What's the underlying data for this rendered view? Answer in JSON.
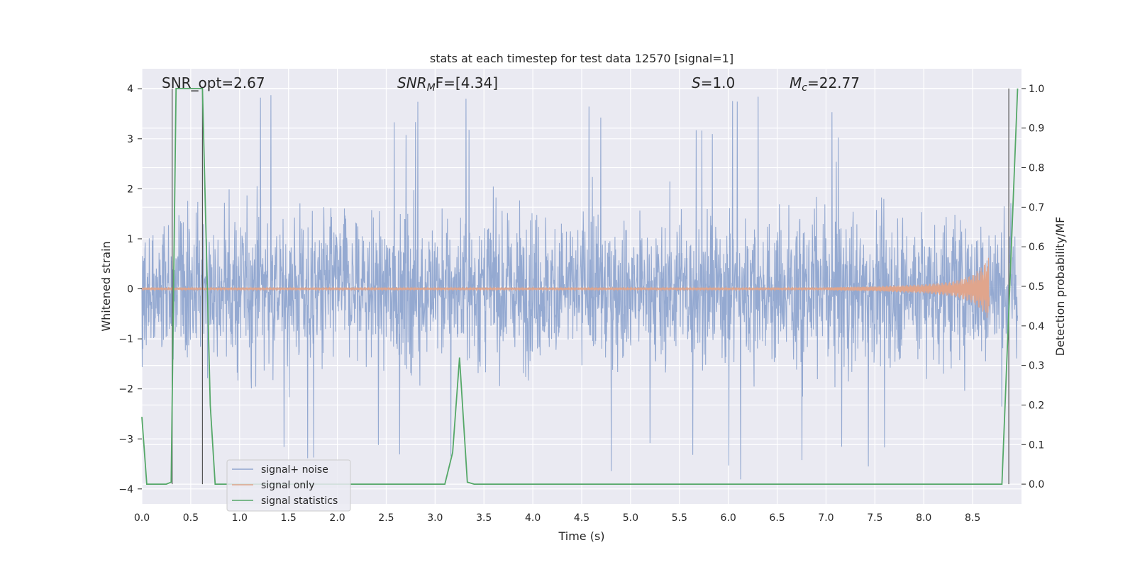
{
  "chart_data": {
    "type": "line",
    "title": "stats at each timestep for test data 12570 [signal=1]",
    "xlabel": "Time (s)",
    "ylabel_left": "Whitened strain",
    "ylabel_right": "Detection probability/MF",
    "xlim": [
      0,
      9.0
    ],
    "ylim_left": [
      -4.3,
      4.4
    ],
    "ylim_right": [
      -0.05,
      1.05
    ],
    "xticks": [
      "0.0",
      "0.5",
      "1.0",
      "1.5",
      "2.0",
      "2.5",
      "3.0",
      "3.5",
      "4.0",
      "4.5",
      "5.0",
      "5.5",
      "6.0",
      "6.5",
      "7.0",
      "7.5",
      "8.0",
      "8.5"
    ],
    "yticks_left": [
      "4",
      "3",
      "2",
      "1",
      "0",
      "−1",
      "−2",
      "−3",
      "−4"
    ],
    "yticks_right": [
      "1.0",
      "0.9",
      "0.8",
      "0.7",
      "0.6",
      "0.5",
      "0.4",
      "0.3",
      "0.2",
      "0.1",
      "0.0"
    ],
    "grid": true,
    "legend_position": "lower-left",
    "annotations": {
      "snr_opt": "SNR_opt=2.67",
      "snr_mf_name": "SNR",
      "snr_mf_sub": "M",
      "snr_mf_rest": "F=[4.34]",
      "s_name": "S",
      "s_rest": "=1.0",
      "mc_name": "M",
      "mc_sub": "c",
      "mc_rest": "=22.77"
    },
    "series": [
      {
        "name": "signal+ noise",
        "color": "#8fa5cf",
        "note": "dense whitened noise, roughly within [-2.5, 2.6] with spikes to ±3.9"
      },
      {
        "name": "signal only",
        "color": "#e0a58c",
        "envelope": {
          "x": [
            7.0,
            7.5,
            8.0,
            8.3,
            8.5,
            8.6,
            8.67
          ],
          "amplitude": [
            0.03,
            0.05,
            0.09,
            0.15,
            0.28,
            0.45,
            0.65
          ]
        }
      },
      {
        "name": "signal statistics",
        "color": "#55a868",
        "axis": "right",
        "x": [
          0.0,
          0.05,
          0.15,
          0.25,
          0.3,
          0.35,
          0.38,
          0.55,
          0.62,
          0.7,
          0.75,
          0.8,
          3.1,
          3.18,
          3.25,
          3.33,
          3.4,
          8.5,
          8.8,
          8.88,
          8.96
        ],
        "y": [
          0.17,
          0.0,
          0.0,
          0.0,
          0.005,
          1.0,
          1.0,
          1.0,
          1.0,
          0.2,
          0.0,
          0.0,
          0.0,
          0.08,
          0.32,
          0.005,
          0.0,
          0.0,
          0.0,
          0.5,
          1.0
        ]
      }
    ],
    "vertical_markers_x": [
      0.31,
      0.62,
      8.87
    ]
  }
}
